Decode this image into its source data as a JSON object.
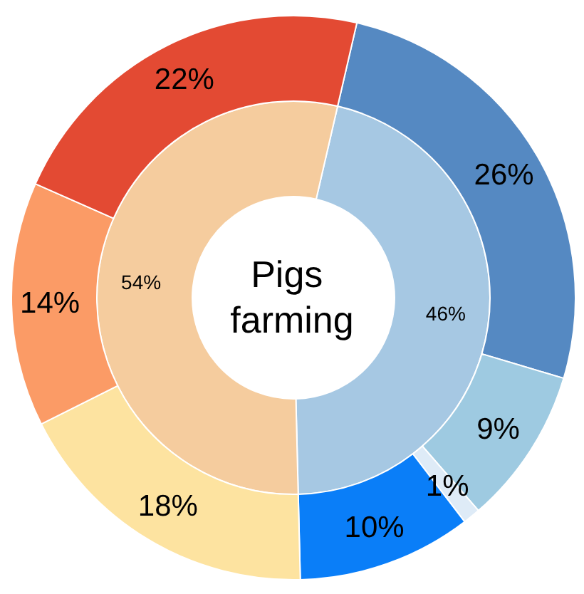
{
  "chart_data": {
    "type": "donut",
    "title": "Pigs farming",
    "series": [
      {
        "values": [
          46,
          54
        ],
        "colors": [
          "#a6c8e3",
          "#f5cc9e"
        ],
        "value_labels": [
          "46%",
          "54%"
        ]
      },
      {
        "values": [
          26,
          9,
          1,
          10,
          18,
          14,
          22
        ],
        "colors": [
          "#5589c2",
          "#9ecae1",
          "#deebf7",
          "#0a7ef8",
          "#fde3a0",
          "#fb9b66",
          "#e34a33"
        ],
        "value_labels": [
          "26%",
          "9%",
          "1%",
          "10%",
          "18%",
          "14%",
          "22%"
        ]
      }
    ]
  }
}
